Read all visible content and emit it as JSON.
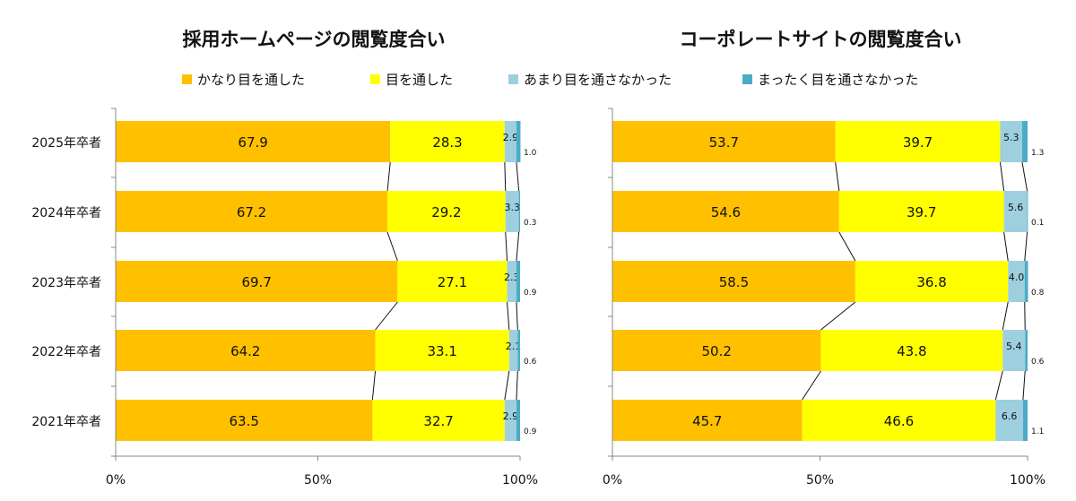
{
  "legend": {
    "items": [
      {
        "label": "かなり目を通した",
        "color": "#FFC000"
      },
      {
        "label": "目を通した",
        "color": "#FFFF00"
      },
      {
        "label": "あまり目を通さなかった",
        "color": "#9DCFDF"
      },
      {
        "label": "まったく目を通さなかった",
        "color": "#4BACC6"
      }
    ]
  },
  "chart_data": [
    {
      "type": "bar",
      "orientation": "horizontal",
      "stacked": true,
      "title": "採用ホームページの閲覧度合い",
      "categories": [
        "2025年卒者",
        "2024年卒者",
        "2023年卒者",
        "2022年卒者",
        "2021年卒者"
      ],
      "series": [
        {
          "name": "かなり目を通した",
          "values": [
            67.9,
            67.2,
            69.7,
            64.2,
            63.5
          ]
        },
        {
          "name": "目を通した",
          "values": [
            28.3,
            29.2,
            27.1,
            33.1,
            32.7
          ]
        },
        {
          "name": "あまり目を通さなかった",
          "values": [
            2.9,
            3.3,
            2.3,
            2.1,
            2.9
          ]
        },
        {
          "name": "まったく目を通さなかった",
          "values": [
            1.0,
            0.3,
            0.9,
            0.6,
            0.9
          ]
        }
      ],
      "xticks": [
        "0%",
        "50%",
        "100%"
      ],
      "xlim": [
        0,
        100
      ]
    },
    {
      "type": "bar",
      "orientation": "horizontal",
      "stacked": true,
      "title": "コーポレートサイトの閲覧度合い",
      "categories": [
        "2025年卒者",
        "2024年卒者",
        "2023年卒者",
        "2022年卒者",
        "2021年卒者"
      ],
      "series": [
        {
          "name": "かなり目を通した",
          "values": [
            53.7,
            54.6,
            58.5,
            50.2,
            45.7
          ]
        },
        {
          "name": "目を通した",
          "values": [
            39.7,
            39.7,
            36.8,
            43.8,
            46.6
          ]
        },
        {
          "name": "あまり目を通さなかった",
          "values": [
            5.3,
            5.6,
            4.0,
            5.4,
            6.6
          ]
        },
        {
          "name": "まったく目を通さなかった",
          "values": [
            1.3,
            0.1,
            0.8,
            0.6,
            1.1
          ]
        }
      ],
      "xticks": [
        "0%",
        "50%",
        "100%"
      ],
      "xlim": [
        0,
        100
      ]
    }
  ]
}
